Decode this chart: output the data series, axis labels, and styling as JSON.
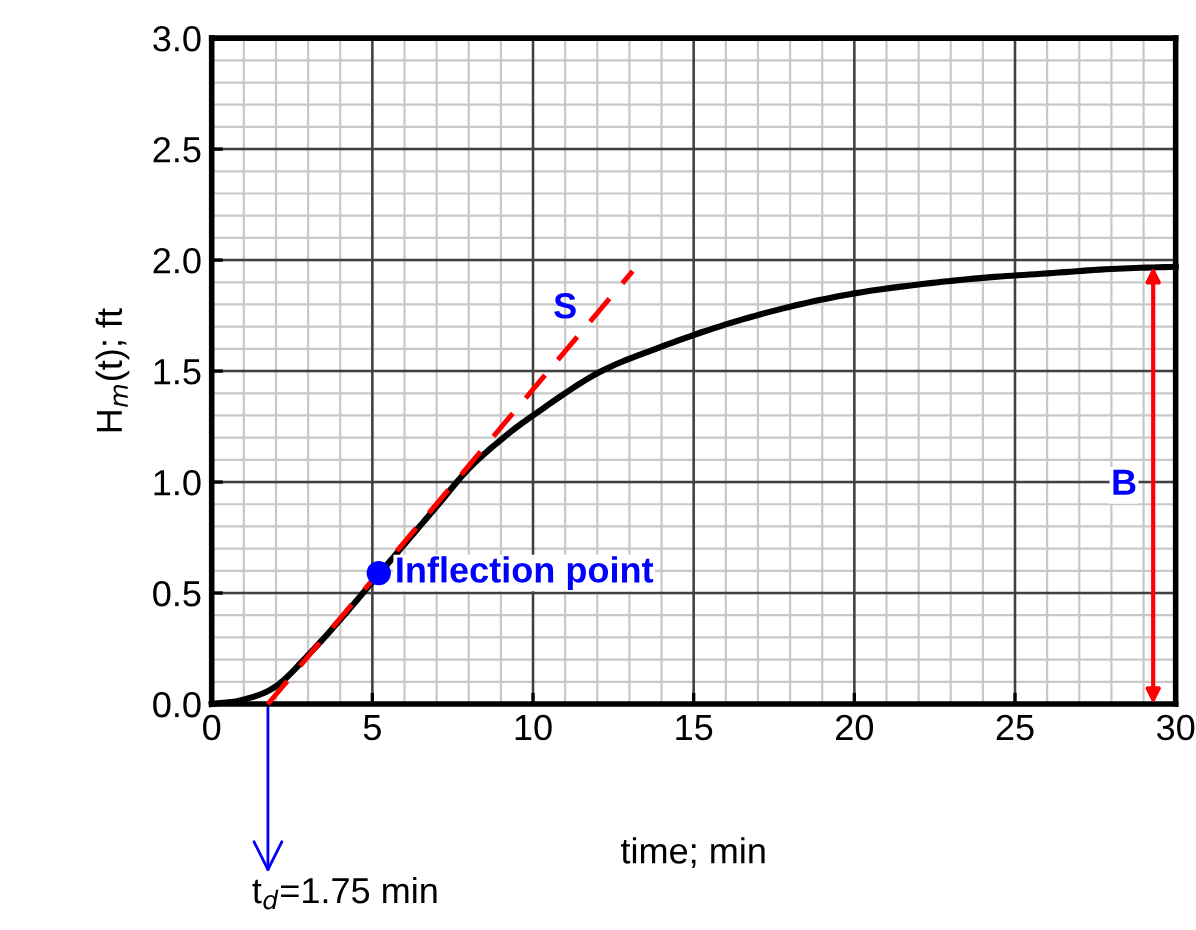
{
  "chart_data": {
    "type": "line",
    "xlabel": "time; min",
    "ylabel": "H$_{m}$(t); ft",
    "xlim": [
      0,
      30
    ],
    "ylim": [
      0,
      3
    ],
    "xticks": [
      0,
      5,
      10,
      15,
      20,
      25,
      30
    ],
    "yticks": [
      {
        "value": 0,
        "label": "0.0"
      },
      {
        "value": 0.5,
        "label": "0.5"
      },
      {
        "value": 1,
        "label": "1.0"
      },
      {
        "value": 1.5,
        "label": "1.5"
      },
      {
        "value": 2,
        "label": "2.0"
      },
      {
        "value": 2.5,
        "label": "2.5"
      },
      {
        "value": 3,
        "label": "3.0"
      }
    ],
    "grid": true,
    "legend": false,
    "series": [
      {
        "color": "#000000",
        "line_style": "solid",
        "marker": "none",
        "x": [
          0,
          1,
          2,
          3,
          4,
          5,
          6,
          7,
          8,
          9,
          10,
          12,
          14,
          16,
          18,
          20,
          22,
          24,
          26,
          28,
          30
        ],
        "values": [
          0,
          0.02,
          0.08,
          0.22,
          0.38,
          0.55,
          0.72,
          0.89,
          1.06,
          1.19,
          1.3,
          1.49,
          1.61,
          1.71,
          1.79,
          1.85,
          1.89,
          1.92,
          1.94,
          1.96,
          1.97
        ]
      },
      {
        "name": "S",
        "color": "#ff0000",
        "line_style": "dashed",
        "marker": "none",
        "x": [
          1.75,
          13.1
        ],
        "values": [
          0,
          1.95
        ]
      },
      {
        "name": "Inflection point",
        "type": "scatter",
        "color": "#0000ff",
        "marker": "circle",
        "x": [
          5.2
        ],
        "values": [
          0.59
        ]
      }
    ],
    "annotations": [
      "B",
      "t$_{d}$=1.75 min"
    ]
  }
}
